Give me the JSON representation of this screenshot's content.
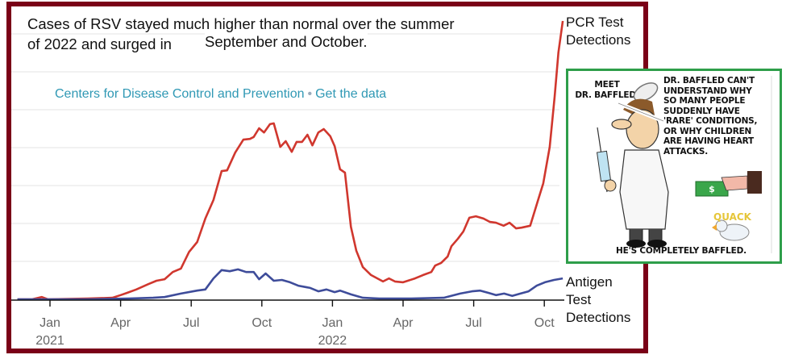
{
  "title": {
    "line1": "Cases of RSV stayed much higher than normal over the summer",
    "line2a": "of 2022 and surged in",
    "line2b": "September and October."
  },
  "source": {
    "org": "Centers for Disease Control and Prevention",
    "separator": "•",
    "link": "Get the data"
  },
  "legend": {
    "pcr": [
      "PCR Test",
      "Detections"
    ],
    "antigen": [
      "Antigen",
      "Test",
      "Detections"
    ]
  },
  "cartoon": {
    "meet": [
      "MEET",
      "DR. BAFFLED."
    ],
    "caption": [
      "DR. BAFFLED CAN'T",
      "UNDERSTAND WHY",
      "SO MANY PEOPLE",
      "SUDDENLY HAVE",
      "'RARE' CONDITIONS,",
      "OR WHY CHILDREN",
      "ARE HAVING HEART",
      "ATTACKS."
    ],
    "quack": "QUACK",
    "money": "$",
    "footer": "HE'S COMPLETELY BAFFLED."
  },
  "colors": {
    "frame": "#7a0017",
    "pcr": "#d0372e",
    "antigen": "#3e4c9a",
    "source_text": "#2f98b4",
    "cartoon_border": "#2e9e4a",
    "grid": "#e3e3e3"
  },
  "chart_data": {
    "type": "line",
    "title": "Cases of RSV stayed much higher than normal over the summer of 2022 and surged in September and October.",
    "xlabel": "",
    "ylabel": "",
    "y_units": "relative (gridline intervals; y-axis unlabeled)",
    "ylim": [
      0,
      7.3
    ],
    "grid": true,
    "gridlines_y": [
      1,
      2,
      3,
      4,
      5,
      6,
      7
    ],
    "x_ticks": [
      {
        "week": 6,
        "label": "Jan",
        "year": "2021"
      },
      {
        "week": 19,
        "label": "Apr",
        "year": ""
      },
      {
        "week": 32,
        "label": "Jul",
        "year": ""
      },
      {
        "week": 45,
        "label": "Oct",
        "year": ""
      },
      {
        "week": 58,
        "label": "Jan",
        "year": "2022"
      },
      {
        "week": 71,
        "label": "Apr",
        "year": ""
      },
      {
        "week": 84,
        "label": "Jul",
        "year": ""
      },
      {
        "week": 97,
        "label": "Oct",
        "year": ""
      }
    ],
    "x_domain_weeks": [
      -1.5,
      100.5
    ],
    "legend_placement": "right, end-of-line labels",
    "series": [
      {
        "name": "PCR Test Detections",
        "color": "#d0372e",
        "points": [
          [
            0,
            0
          ],
          [
            2.7,
            0
          ],
          [
            4.5,
            0.06
          ],
          [
            5.6,
            0
          ],
          [
            13,
            0.02
          ],
          [
            17.5,
            0.04
          ],
          [
            19,
            0.11
          ],
          [
            20.2,
            0.17
          ],
          [
            21.9,
            0.26
          ],
          [
            24.1,
            0.4
          ],
          [
            25.6,
            0.49
          ],
          [
            27.1,
            0.53
          ],
          [
            28.6,
            0.72
          ],
          [
            30.1,
            0.81
          ],
          [
            31.6,
            1.25
          ],
          [
            33.1,
            1.51
          ],
          [
            34.6,
            2.13
          ],
          [
            36.1,
            2.62
          ],
          [
            37.6,
            3.38
          ],
          [
            38.6,
            3.4
          ],
          [
            40.1,
            3.87
          ],
          [
            41.6,
            4.21
          ],
          [
            42.8,
            4.23
          ],
          [
            43.5,
            4.28
          ],
          [
            44.5,
            4.51
          ],
          [
            45.4,
            4.4
          ],
          [
            46.5,
            4.62
          ],
          [
            47.2,
            4.64
          ],
          [
            48.4,
            4.02
          ],
          [
            49.4,
            4.17
          ],
          [
            50.5,
            3.89
          ],
          [
            51.4,
            4.15
          ],
          [
            52.4,
            4.15
          ],
          [
            53.4,
            4.34
          ],
          [
            54.3,
            4.06
          ],
          [
            55.4,
            4.4
          ],
          [
            56.4,
            4.49
          ],
          [
            57.6,
            4.3
          ],
          [
            58.4,
            4.04
          ],
          [
            59.4,
            3.43
          ],
          [
            60.3,
            3.34
          ],
          [
            61.4,
            1.91
          ],
          [
            62.4,
            1.28
          ],
          [
            63.6,
            0.85
          ],
          [
            65.1,
            0.64
          ],
          [
            67.3,
            0.47
          ],
          [
            68.4,
            0.55
          ],
          [
            69.5,
            0.47
          ],
          [
            71,
            0.45
          ],
          [
            73.2,
            0.55
          ],
          [
            74.7,
            0.64
          ],
          [
            76.2,
            0.72
          ],
          [
            76.9,
            0.89
          ],
          [
            78,
            0.96
          ],
          [
            79.2,
            1.13
          ],
          [
            79.9,
            1.4
          ],
          [
            81.1,
            1.6
          ],
          [
            82.1,
            1.79
          ],
          [
            83.2,
            2.15
          ],
          [
            84.4,
            2.19
          ],
          [
            85.8,
            2.13
          ],
          [
            87,
            2.04
          ],
          [
            88.1,
            2.02
          ],
          [
            89.5,
            1.94
          ],
          [
            90.6,
            2.02
          ],
          [
            91.8,
            1.87
          ],
          [
            92.8,
            1.89
          ],
          [
            94.4,
            1.94
          ],
          [
            95.9,
            2.64
          ],
          [
            96.8,
            3.06
          ],
          [
            98,
            4.02
          ],
          [
            98.9,
            5.34
          ],
          [
            99.6,
            6.51
          ],
          [
            100.4,
            7.34
          ]
        ]
      },
      {
        "name": "Antigen Test Detections",
        "color": "#3e4c9a",
        "points": [
          [
            0,
            0
          ],
          [
            13,
            0
          ],
          [
            20.5,
            0.02
          ],
          [
            25,
            0.04
          ],
          [
            27.1,
            0.06
          ],
          [
            30.1,
            0.15
          ],
          [
            33.1,
            0.23
          ],
          [
            34.6,
            0.26
          ],
          [
            36.1,
            0.55
          ],
          [
            37.6,
            0.77
          ],
          [
            39.1,
            0.74
          ],
          [
            40.6,
            0.79
          ],
          [
            42.1,
            0.72
          ],
          [
            43.5,
            0.72
          ],
          [
            44.5,
            0.53
          ],
          [
            45.7,
            0.68
          ],
          [
            47.2,
            0.49
          ],
          [
            48.7,
            0.51
          ],
          [
            50.2,
            0.45
          ],
          [
            51.7,
            0.36
          ],
          [
            53.9,
            0.3
          ],
          [
            55.4,
            0.21
          ],
          [
            56.9,
            0.26
          ],
          [
            58.4,
            0.19
          ],
          [
            59.4,
            0.23
          ],
          [
            61.4,
            0.13
          ],
          [
            63.6,
            0.04
          ],
          [
            66.6,
            0.02
          ],
          [
            72.5,
            0.02
          ],
          [
            78.5,
            0.04
          ],
          [
            81.5,
            0.15
          ],
          [
            83.7,
            0.21
          ],
          [
            85.2,
            0.23
          ],
          [
            86.7,
            0.17
          ],
          [
            88.1,
            0.11
          ],
          [
            89.6,
            0.15
          ],
          [
            91.1,
            0.09
          ],
          [
            92.6,
            0.15
          ],
          [
            94.1,
            0.21
          ],
          [
            95.6,
            0.36
          ],
          [
            97.1,
            0.45
          ],
          [
            98.8,
            0.51
          ],
          [
            100.4,
            0.55
          ]
        ]
      }
    ]
  }
}
